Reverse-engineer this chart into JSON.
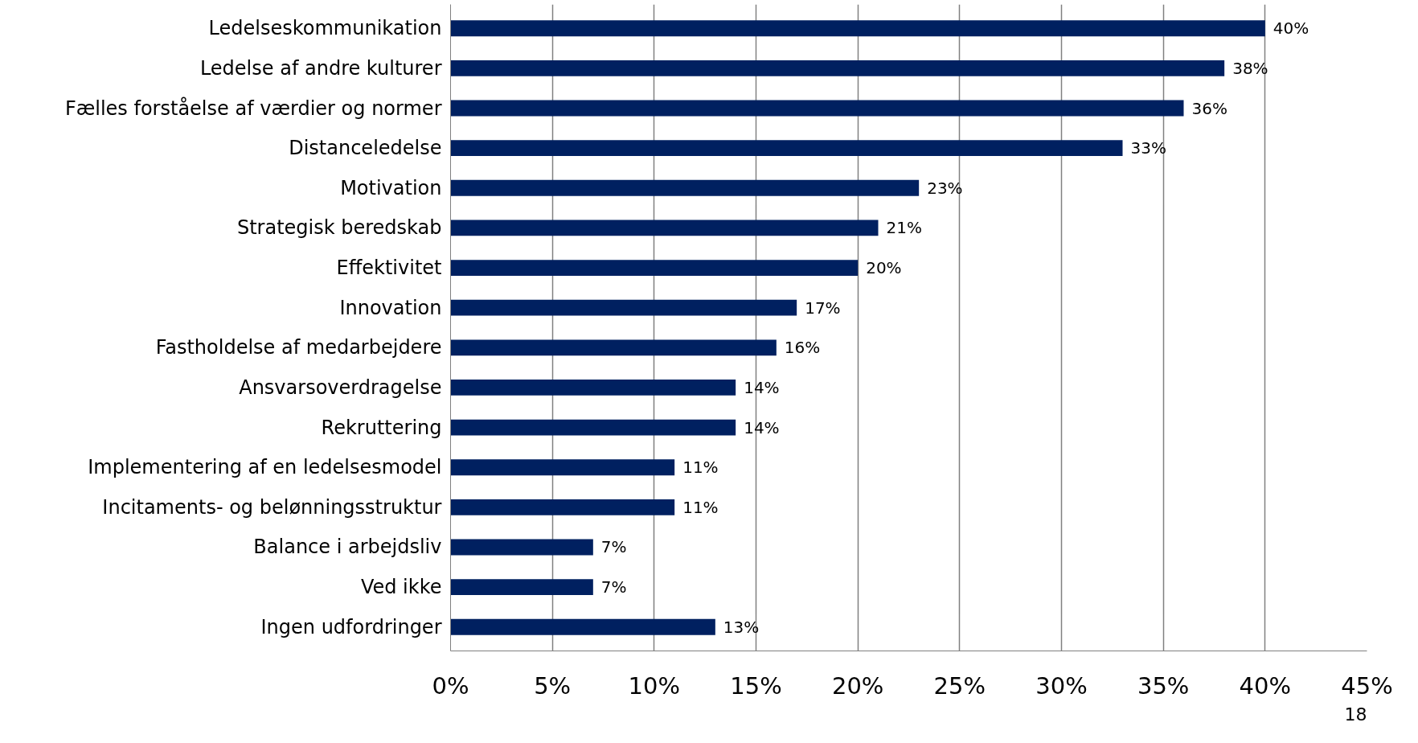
{
  "chart_data": {
    "type": "bar",
    "orientation": "horizontal",
    "categories": [
      "Ledelseskommunikation",
      "Ledelse af andre kulturer",
      "Fælles forståelse af værdier og normer",
      "Distanceledelse",
      "Motivation",
      "Strategisk beredskab",
      "Effektivitet",
      "Innovation",
      "Fastholdelse af medarbejdere",
      "Ansvarsoverdragelse",
      "Rekruttering",
      "Implementering af en ledelsesmodel",
      "Incitaments- og belønningsstruktur",
      "Balance i arbejdsliv",
      "Ved ikke",
      "Ingen udfordringer"
    ],
    "values": [
      40,
      38,
      36,
      33,
      23,
      21,
      20,
      17,
      16,
      14,
      14,
      11,
      11,
      7,
      7,
      13
    ],
    "color": "#002060",
    "value_labels": [
      "40%",
      "38%",
      "36%",
      "33%",
      "23%",
      "21%",
      "20%",
      "17%",
      "16%",
      "14%",
      "14%",
      "11%",
      "11%",
      "7%",
      "7%",
      "13%"
    ],
    "xlim": [
      0,
      45
    ],
    "xticks": [
      {
        "value": 0,
        "label": "0%"
      },
      {
        "value": 5,
        "label": "5%"
      },
      {
        "value": 10,
        "label": "10%"
      },
      {
        "value": 15,
        "label": "15%"
      },
      {
        "value": 20,
        "label": "20%"
      },
      {
        "value": 25,
        "label": "25%"
      },
      {
        "value": 30,
        "label": "30%"
      },
      {
        "value": 35,
        "label": "35%"
      },
      {
        "value": 40,
        "label": "40%"
      },
      {
        "value": 45,
        "label": "45%"
      }
    ],
    "grid": "x",
    "annotations": [
      "18"
    ]
  }
}
